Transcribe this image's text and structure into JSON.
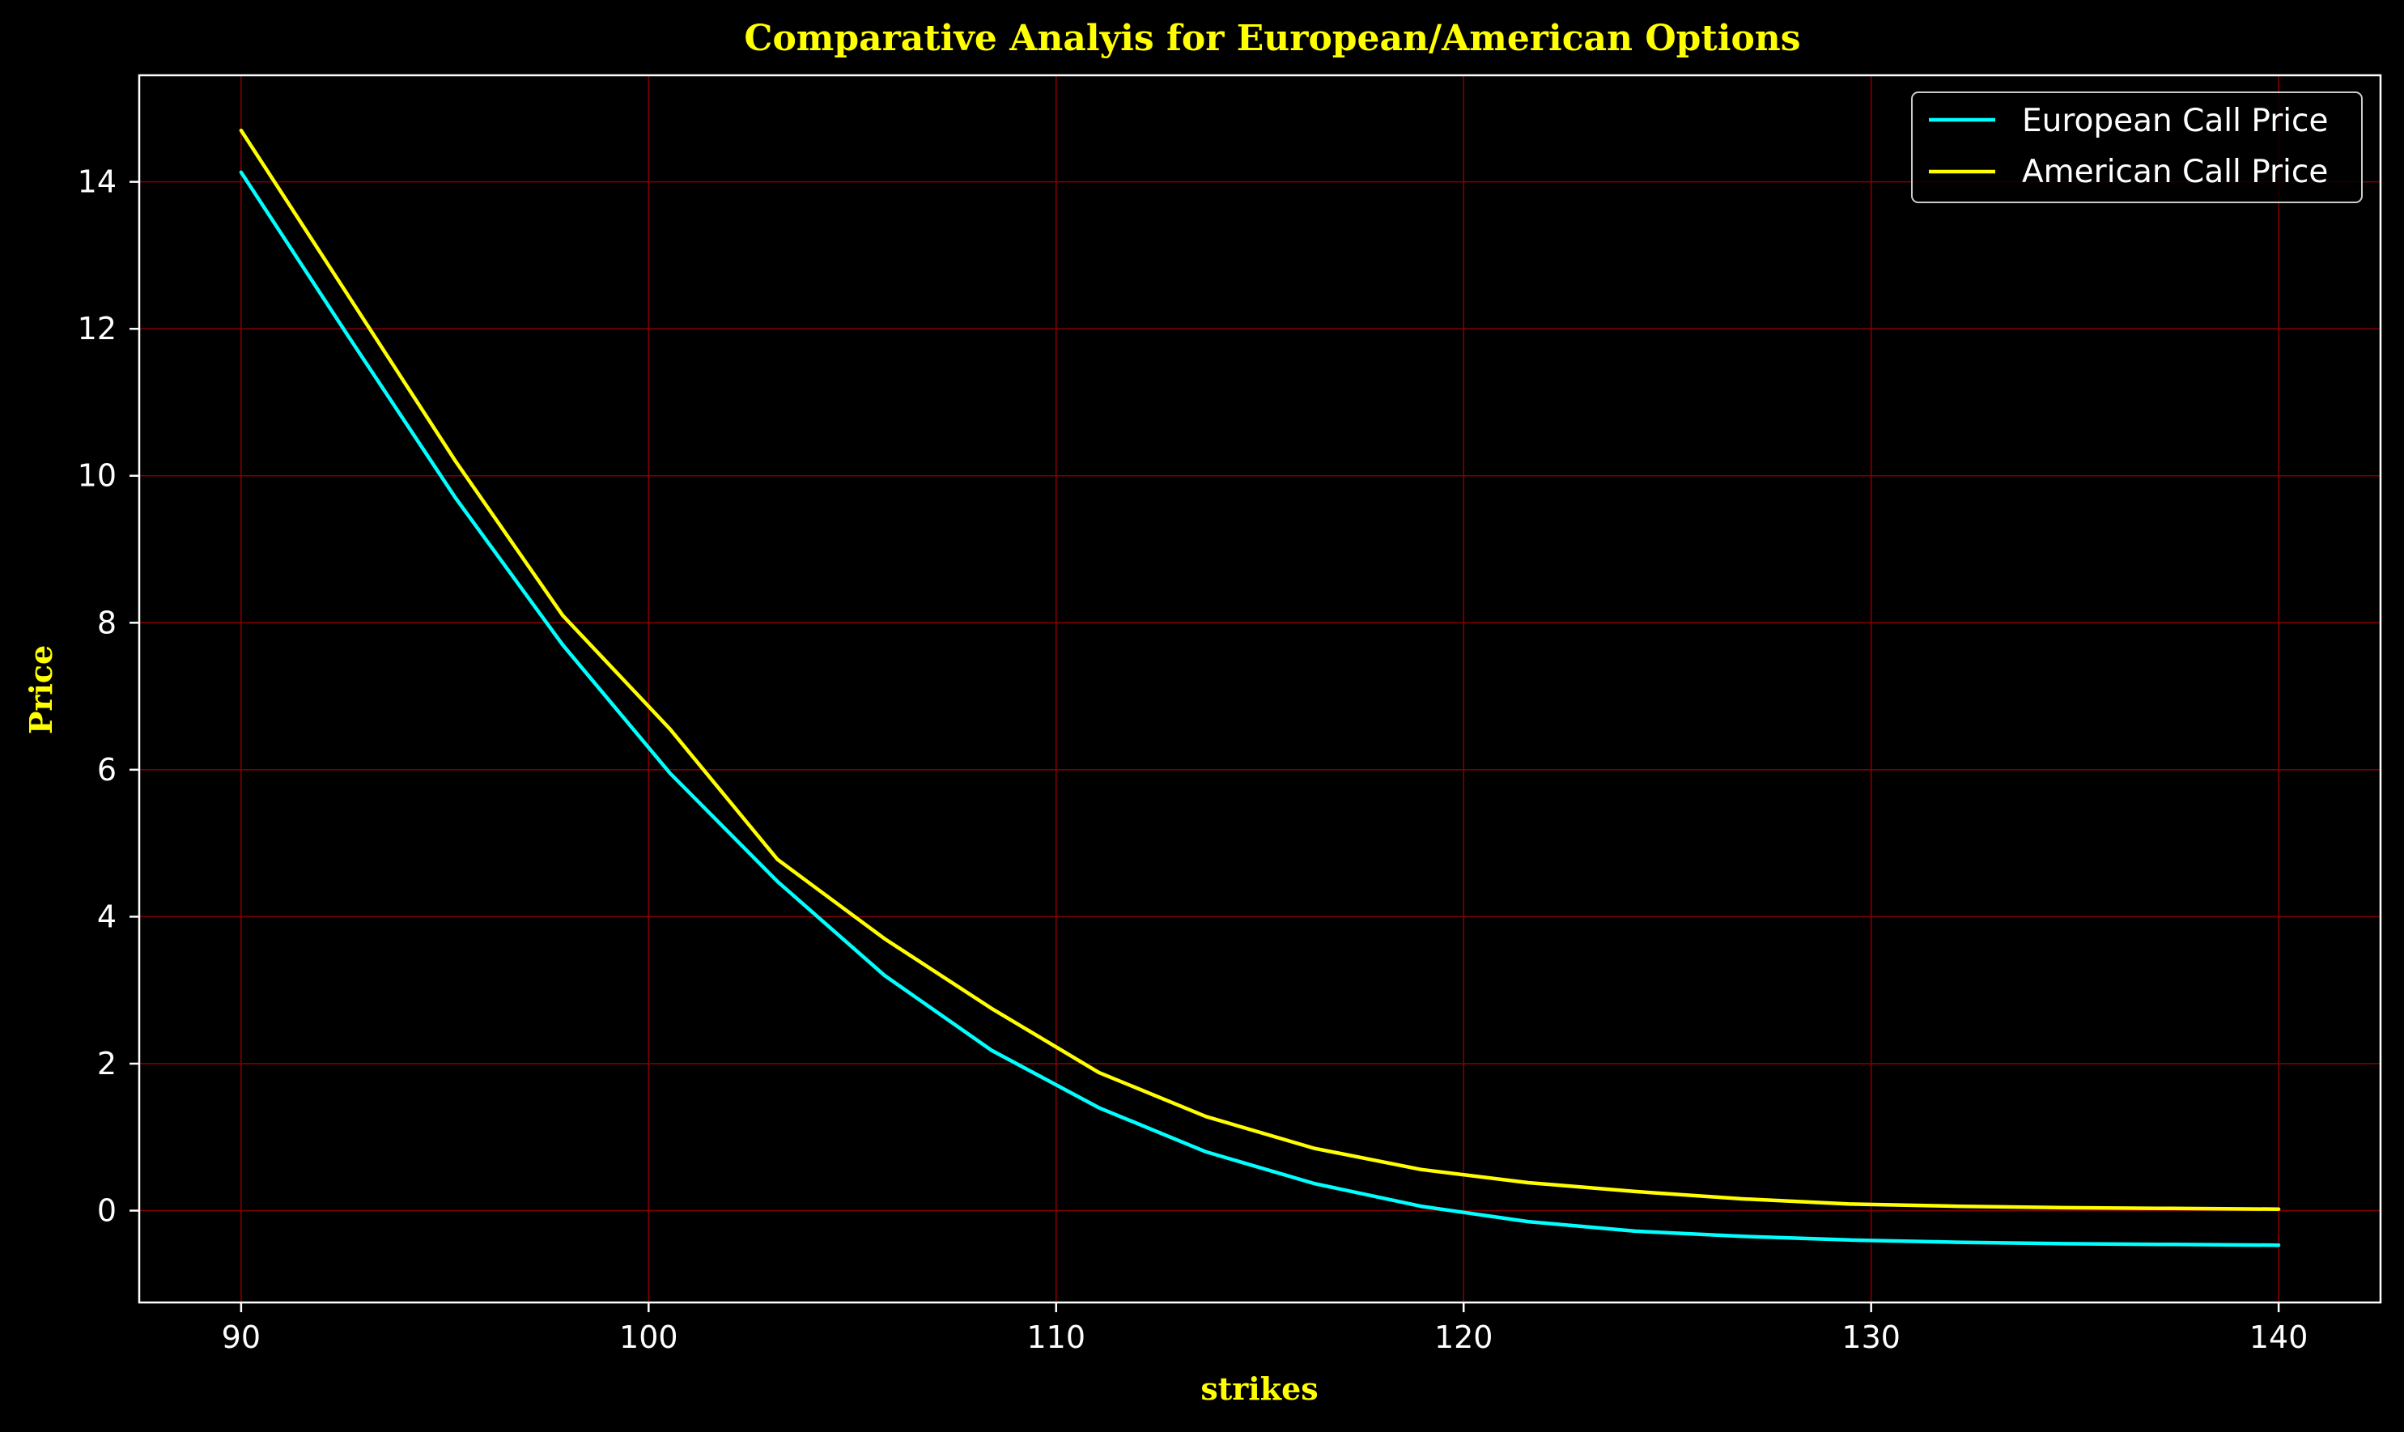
{
  "chart_data": {
    "type": "line",
    "title": "Comparative Analyis for European/American Options",
    "xlabel": "strikes",
    "ylabel": "Price",
    "xlim": [
      87.5,
      142.5
    ],
    "ylim": [
      -1.25,
      15.45
    ],
    "xticks": [
      90,
      100,
      110,
      120,
      130,
      140
    ],
    "yticks": [
      0,
      2,
      4,
      6,
      8,
      10,
      12,
      14
    ],
    "grid": true,
    "legend_position": "top-right",
    "x": [
      90,
      92.63,
      95.26,
      97.89,
      100.53,
      103.16,
      105.79,
      108.42,
      111.05,
      113.68,
      116.32,
      118.95,
      121.58,
      124.21,
      126.84,
      129.47,
      132.11,
      134.74,
      137.37,
      140
    ],
    "series": [
      {
        "name": "European Call Price",
        "color": "#00ffff",
        "values": [
          14.13,
          11.9,
          9.7,
          7.7,
          5.95,
          4.48,
          3.2,
          2.18,
          1.4,
          0.8,
          0.37,
          0.06,
          -0.15,
          -0.28,
          -0.35,
          -0.4,
          -0.43,
          -0.45,
          -0.46,
          -0.47
        ]
      },
      {
        "name": "American Call Price",
        "color": "#ffff00",
        "values": [
          14.7,
          12.45,
          10.2,
          8.1,
          6.55,
          4.78,
          3.7,
          2.75,
          1.88,
          1.28,
          0.85,
          0.56,
          0.38,
          0.26,
          0.16,
          0.09,
          0.06,
          0.04,
          0.03,
          0.02
        ]
      }
    ]
  },
  "style": {
    "background": "#000000",
    "grid_color": "#800000",
    "axis_color": "#ffffff",
    "title_color": "#ffff00",
    "label_color": "#ffff00",
    "tick_color": "#ffffff"
  }
}
